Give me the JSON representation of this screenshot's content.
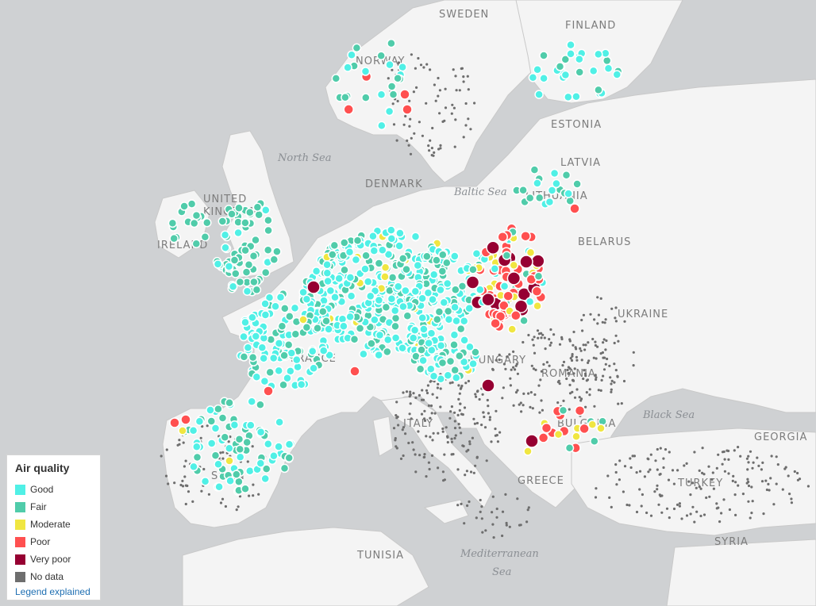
{
  "map": {
    "country_labels": [
      "SWEDEN",
      "FINLAND",
      "NORWAY",
      "ESTONIA",
      "LATVIA",
      "DENMARK",
      "LITHUANIA",
      "UNITED",
      "KINGDOM",
      "IRELAND",
      "BELARUS",
      "UKRAINE",
      "HUNGARY",
      "ROMANIA",
      "SPAIN",
      "GREECE",
      "TURKEY",
      "GEORGIA",
      "SYRIA",
      "TUNISIA",
      "BULGARIA",
      "ITALY",
      "FRANCE"
    ],
    "sea_labels": [
      "North Sea",
      "Baltic Sea",
      "Black Sea",
      "Mediterranean",
      "Sea"
    ]
  },
  "legend": {
    "title": "Air quality",
    "items": [
      {
        "label": "Good",
        "color": "#50f0e6"
      },
      {
        "label": "Fair",
        "color": "#50ccaa"
      },
      {
        "label": "Moderate",
        "color": "#f0e641"
      },
      {
        "label": "Poor",
        "color": "#ff5050"
      },
      {
        "label": "Very poor",
        "color": "#960032"
      },
      {
        "label": "No data",
        "color": "#6e6e6e"
      }
    ],
    "link": "Legend explained"
  },
  "colors": {
    "land": "#f4f4f4",
    "sea": "#cfd1d3",
    "border": "#c4c4c4"
  }
}
